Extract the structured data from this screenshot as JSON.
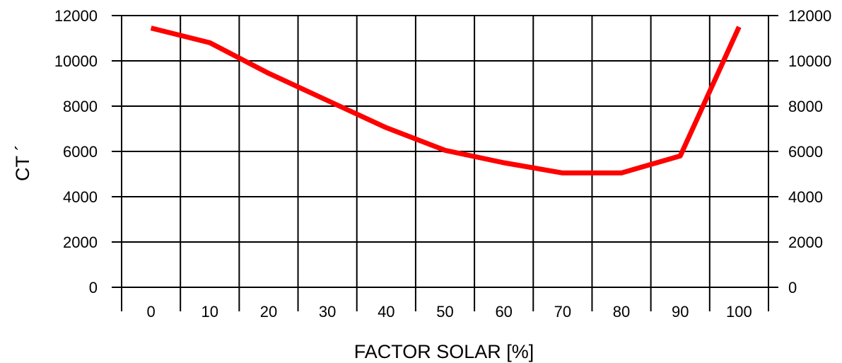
{
  "chart_data": {
    "type": "line",
    "xlabel": "FACTOR SOLAR [%]",
    "ylabel": "CT ´",
    "x_tick_labels": [
      "0",
      "10",
      "20",
      "30",
      "40",
      "50",
      "60",
      "70",
      "80",
      "90",
      "100"
    ],
    "y_tick_labels": [
      "0",
      "2000",
      "4000",
      "6000",
      "8000",
      "10000",
      "12000"
    ],
    "ylim": [
      0,
      12000
    ],
    "grid": true,
    "line_color": "#ff0000",
    "series": [
      {
        "x": [
          0,
          10,
          20,
          30,
          40,
          50,
          60,
          70,
          80,
          90,
          100
        ],
        "values": [
          11450,
          10800,
          9450,
          8250,
          7050,
          6050,
          5500,
          5050,
          5050,
          5800,
          11500
        ]
      }
    ]
  }
}
